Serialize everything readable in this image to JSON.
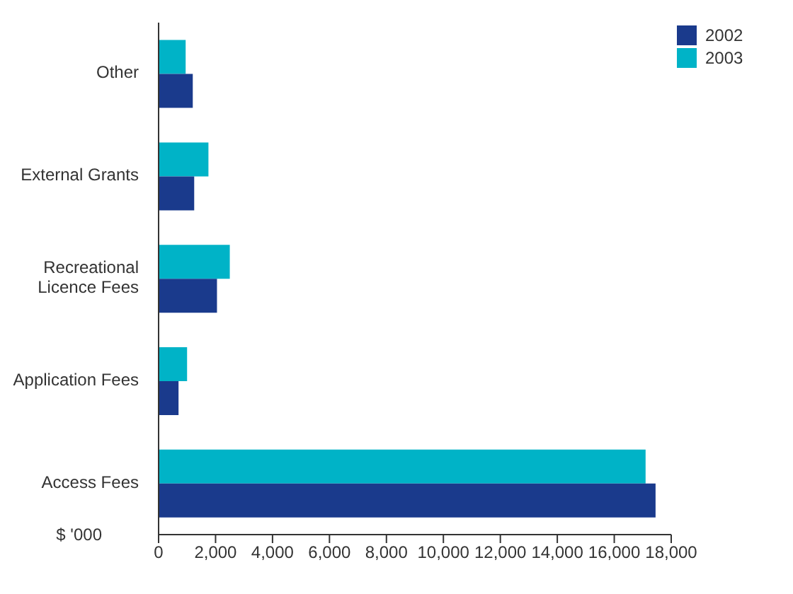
{
  "chart_data": {
    "type": "bar",
    "orientation": "horizontal",
    "xlabel": "$ '000",
    "categories": [
      "Other",
      "External Grants",
      "Recreational Licence Fees",
      "Application Fees",
      "Access Fees"
    ],
    "series": [
      {
        "name": "2002",
        "color": "#1a3a8c",
        "values": [
          1200,
          1250,
          2050,
          700,
          17450
        ]
      },
      {
        "name": "2003",
        "color": "#00b3c7",
        "values": [
          950,
          1750,
          2500,
          1000,
          17100
        ]
      }
    ],
    "xlim": [
      0,
      18000
    ],
    "xticks": [
      {
        "value": 0,
        "label": "0"
      },
      {
        "value": 2000,
        "label": "2,000"
      },
      {
        "value": 4000,
        "label": "4,000"
      },
      {
        "value": 6000,
        "label": "6,000"
      },
      {
        "value": 8000,
        "label": "8,000"
      },
      {
        "value": 10000,
        "label": "10,000"
      },
      {
        "value": 12000,
        "label": "12,000"
      },
      {
        "value": 14000,
        "label": "14,000"
      },
      {
        "value": 16000,
        "label": "16,000"
      },
      {
        "value": 18000,
        "label": "18,000"
      }
    ],
    "grid": false,
    "legend": "top right"
  }
}
